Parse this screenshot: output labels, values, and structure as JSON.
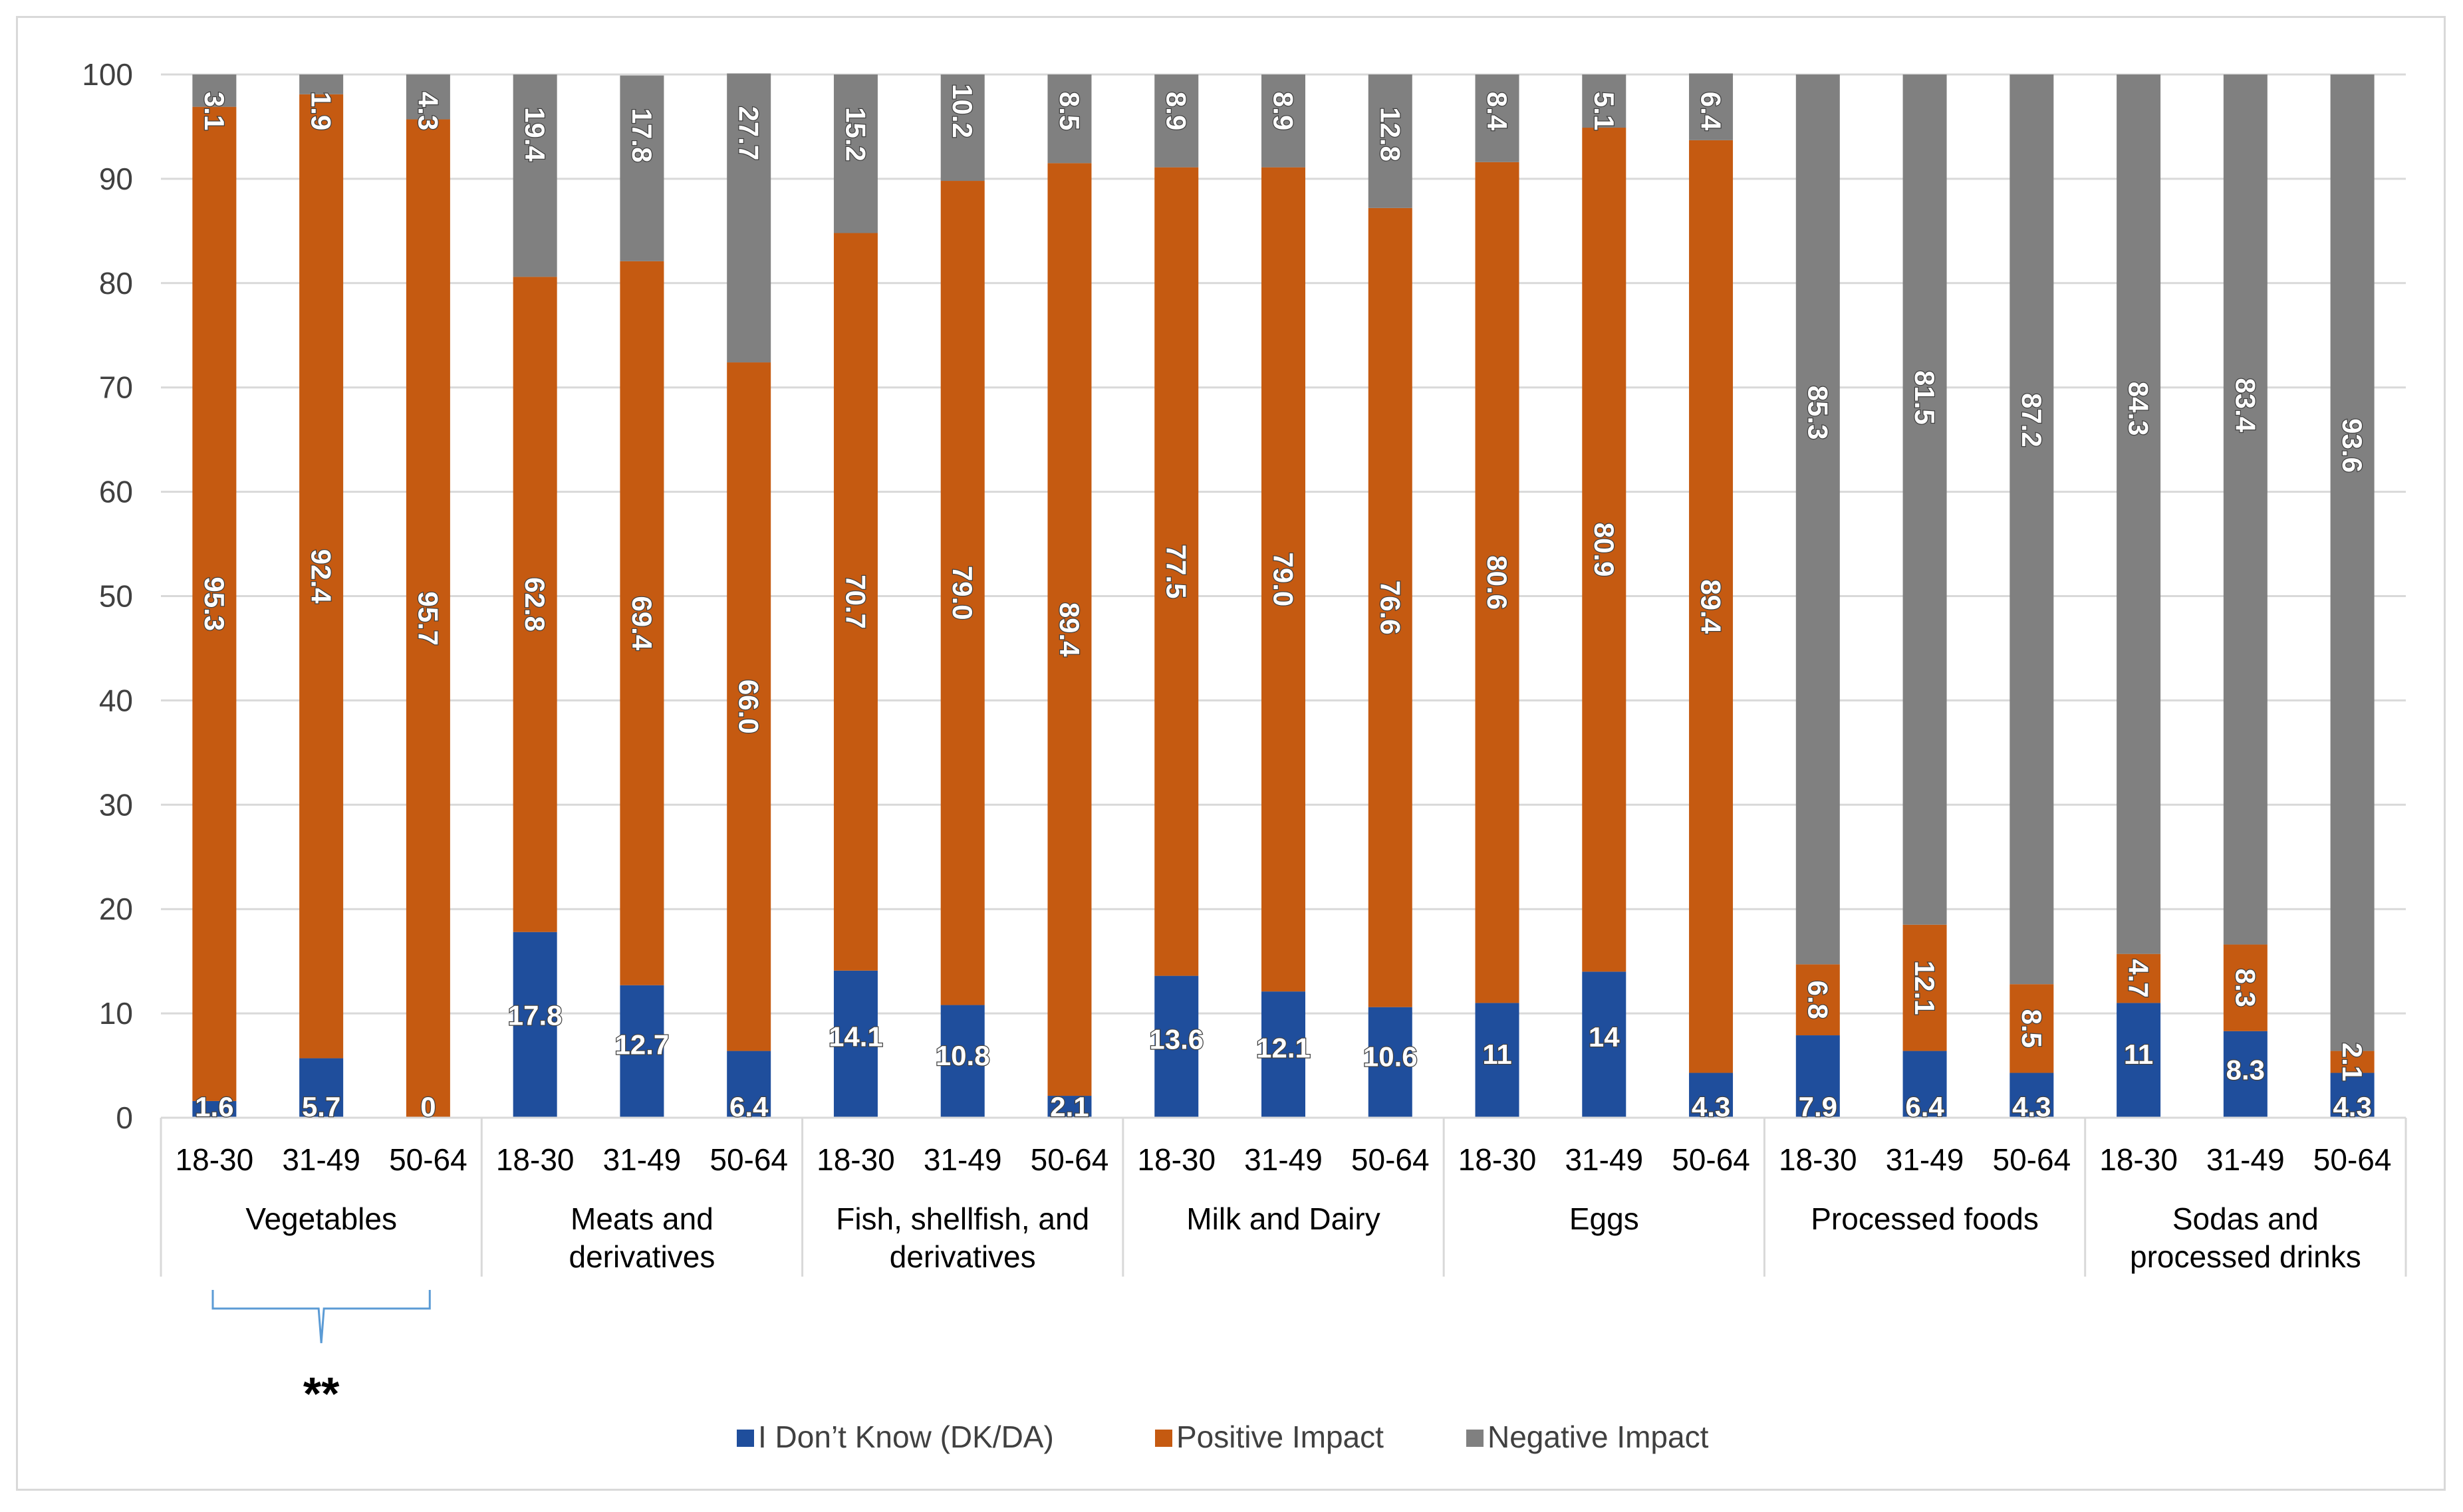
{
  "chart_data": {
    "type": "bar",
    "stacked": true,
    "title": "",
    "xlabel": "",
    "ylabel": "",
    "ylim": [
      0,
      100
    ],
    "yticks": [
      0,
      10,
      20,
      30,
      40,
      50,
      60,
      70,
      80,
      90,
      100
    ],
    "grid": true,
    "legend_position": "bottom",
    "groups": [
      {
        "name": "Vegetables",
        "lines": [
          "Vegetables"
        ]
      },
      {
        "name": "Meats and derivatives",
        "lines": [
          "Meats and",
          "derivatives"
        ]
      },
      {
        "name": "Fish, shellfish, and derivatives",
        "lines": [
          "Fish, shellfish, and",
          "derivatives"
        ]
      },
      {
        "name": "Milk and Dairy",
        "lines": [
          "Milk and Dairy"
        ]
      },
      {
        "name": "Eggs",
        "lines": [
          "Eggs"
        ]
      },
      {
        "name": "Processed foods",
        "lines": [
          "Processed foods"
        ]
      },
      {
        "name": "Sodas and processed drinks",
        "lines": [
          "Sodas and",
          "processed drinks"
        ]
      }
    ],
    "subcategories": [
      "18-30",
      "31-49",
      "50-64"
    ],
    "series": [
      {
        "name": "I Don't Know (DK/DA)",
        "color": "#1f4e9c",
        "values": [
          1.6,
          5.7,
          0,
          17.8,
          12.7,
          6.4,
          14.1,
          10.8,
          2.1,
          13.6,
          12.1,
          10.6,
          11,
          14,
          4.3,
          7.9,
          6.4,
          4.3,
          11,
          8.3,
          4.3
        ],
        "labels": [
          "1.6",
          "5.7",
          "0",
          "17.8",
          "12.7",
          "6.4",
          "14.1",
          "10.8",
          "2.1",
          "13.6",
          "12.1",
          "10.6",
          "11",
          "14",
          "4.3",
          "7.9",
          "6.4",
          "4.3",
          "11",
          "8.3",
          "4.3"
        ]
      },
      {
        "name": "Positive Impact",
        "color": "#c55a11",
        "values": [
          95.3,
          92.4,
          95.7,
          62.8,
          69.4,
          66.0,
          70.7,
          79.0,
          89.4,
          77.5,
          79.0,
          76.6,
          80.6,
          80.9,
          89.4,
          6.8,
          12.1,
          8.5,
          4.7,
          8.3,
          2.1
        ],
        "labels": [
          "95.3",
          "92.4",
          "95.7",
          "62.8",
          "69.4",
          "66.0",
          "70.7",
          "79.0",
          "89.4",
          "77.5",
          "79.0",
          "76.6",
          "80.6",
          "80.9",
          "89.4",
          "6.8",
          "12.1",
          "8.5",
          "4.7",
          "8.3",
          "2.1"
        ]
      },
      {
        "name": "Negative Impact",
        "color": "#808080",
        "values": [
          3.1,
          1.9,
          4.3,
          19.4,
          17.8,
          27.7,
          15.2,
          10.2,
          8.5,
          8.9,
          8.9,
          12.8,
          8.4,
          5.1,
          6.4,
          85.3,
          81.5,
          87.2,
          84.3,
          83.4,
          93.6
        ],
        "labels": [
          "3.1",
          "1.9",
          "4.3",
          "19.4",
          "17.8",
          "27.7",
          "15.2",
          "10.2",
          "8.5",
          "8.9",
          "8.9",
          "12.8",
          "8.4",
          "5.1",
          "6.4",
          "85.3",
          "81.5",
          "87.2",
          "84.3",
          "83.4",
          "93.6"
        ]
      }
    ],
    "legend": [
      "I Don’t Know (DK/DA)",
      "Positive Impact",
      "Negative Impact"
    ],
    "annotations": [
      {
        "text": "**",
        "group": "Vegetables",
        "marker": "brace"
      }
    ]
  }
}
